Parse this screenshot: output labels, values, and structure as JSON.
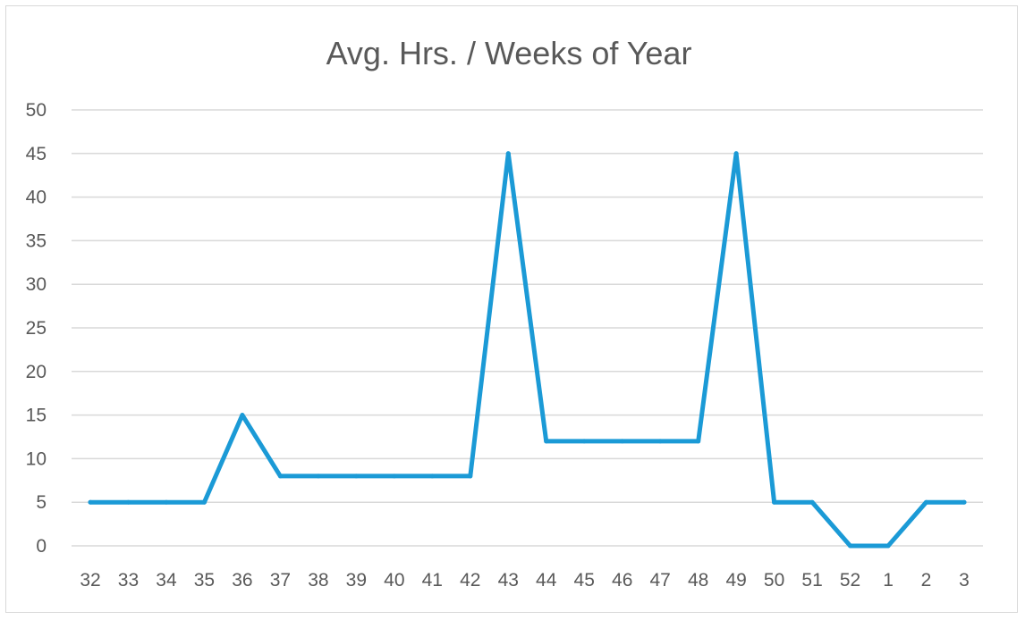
{
  "chart_data": {
    "type": "line",
    "title": "Avg. Hrs. / Weeks of Year",
    "xlabel": "",
    "ylabel": "",
    "categories": [
      "32",
      "33",
      "34",
      "35",
      "36",
      "37",
      "38",
      "39",
      "40",
      "41",
      "42",
      "43",
      "44",
      "45",
      "46",
      "47",
      "48",
      "49",
      "50",
      "51",
      "52",
      "1",
      "2",
      "3"
    ],
    "series": [
      {
        "values": [
          5,
          5,
          5,
          5,
          15,
          8,
          8,
          8,
          8,
          8,
          8,
          45,
          12,
          12,
          12,
          12,
          12,
          45,
          5,
          5,
          0,
          0,
          5,
          5
        ]
      }
    ],
    "ylim": [
      0,
      50
    ],
    "yticks": [
      0,
      5,
      10,
      15,
      20,
      25,
      30,
      35,
      40,
      45,
      50
    ],
    "grid": "horizontal",
    "legend": "none",
    "colors": {
      "series": "#1b9ad6",
      "grid": "#d9d9d9",
      "text": "#595959"
    }
  }
}
